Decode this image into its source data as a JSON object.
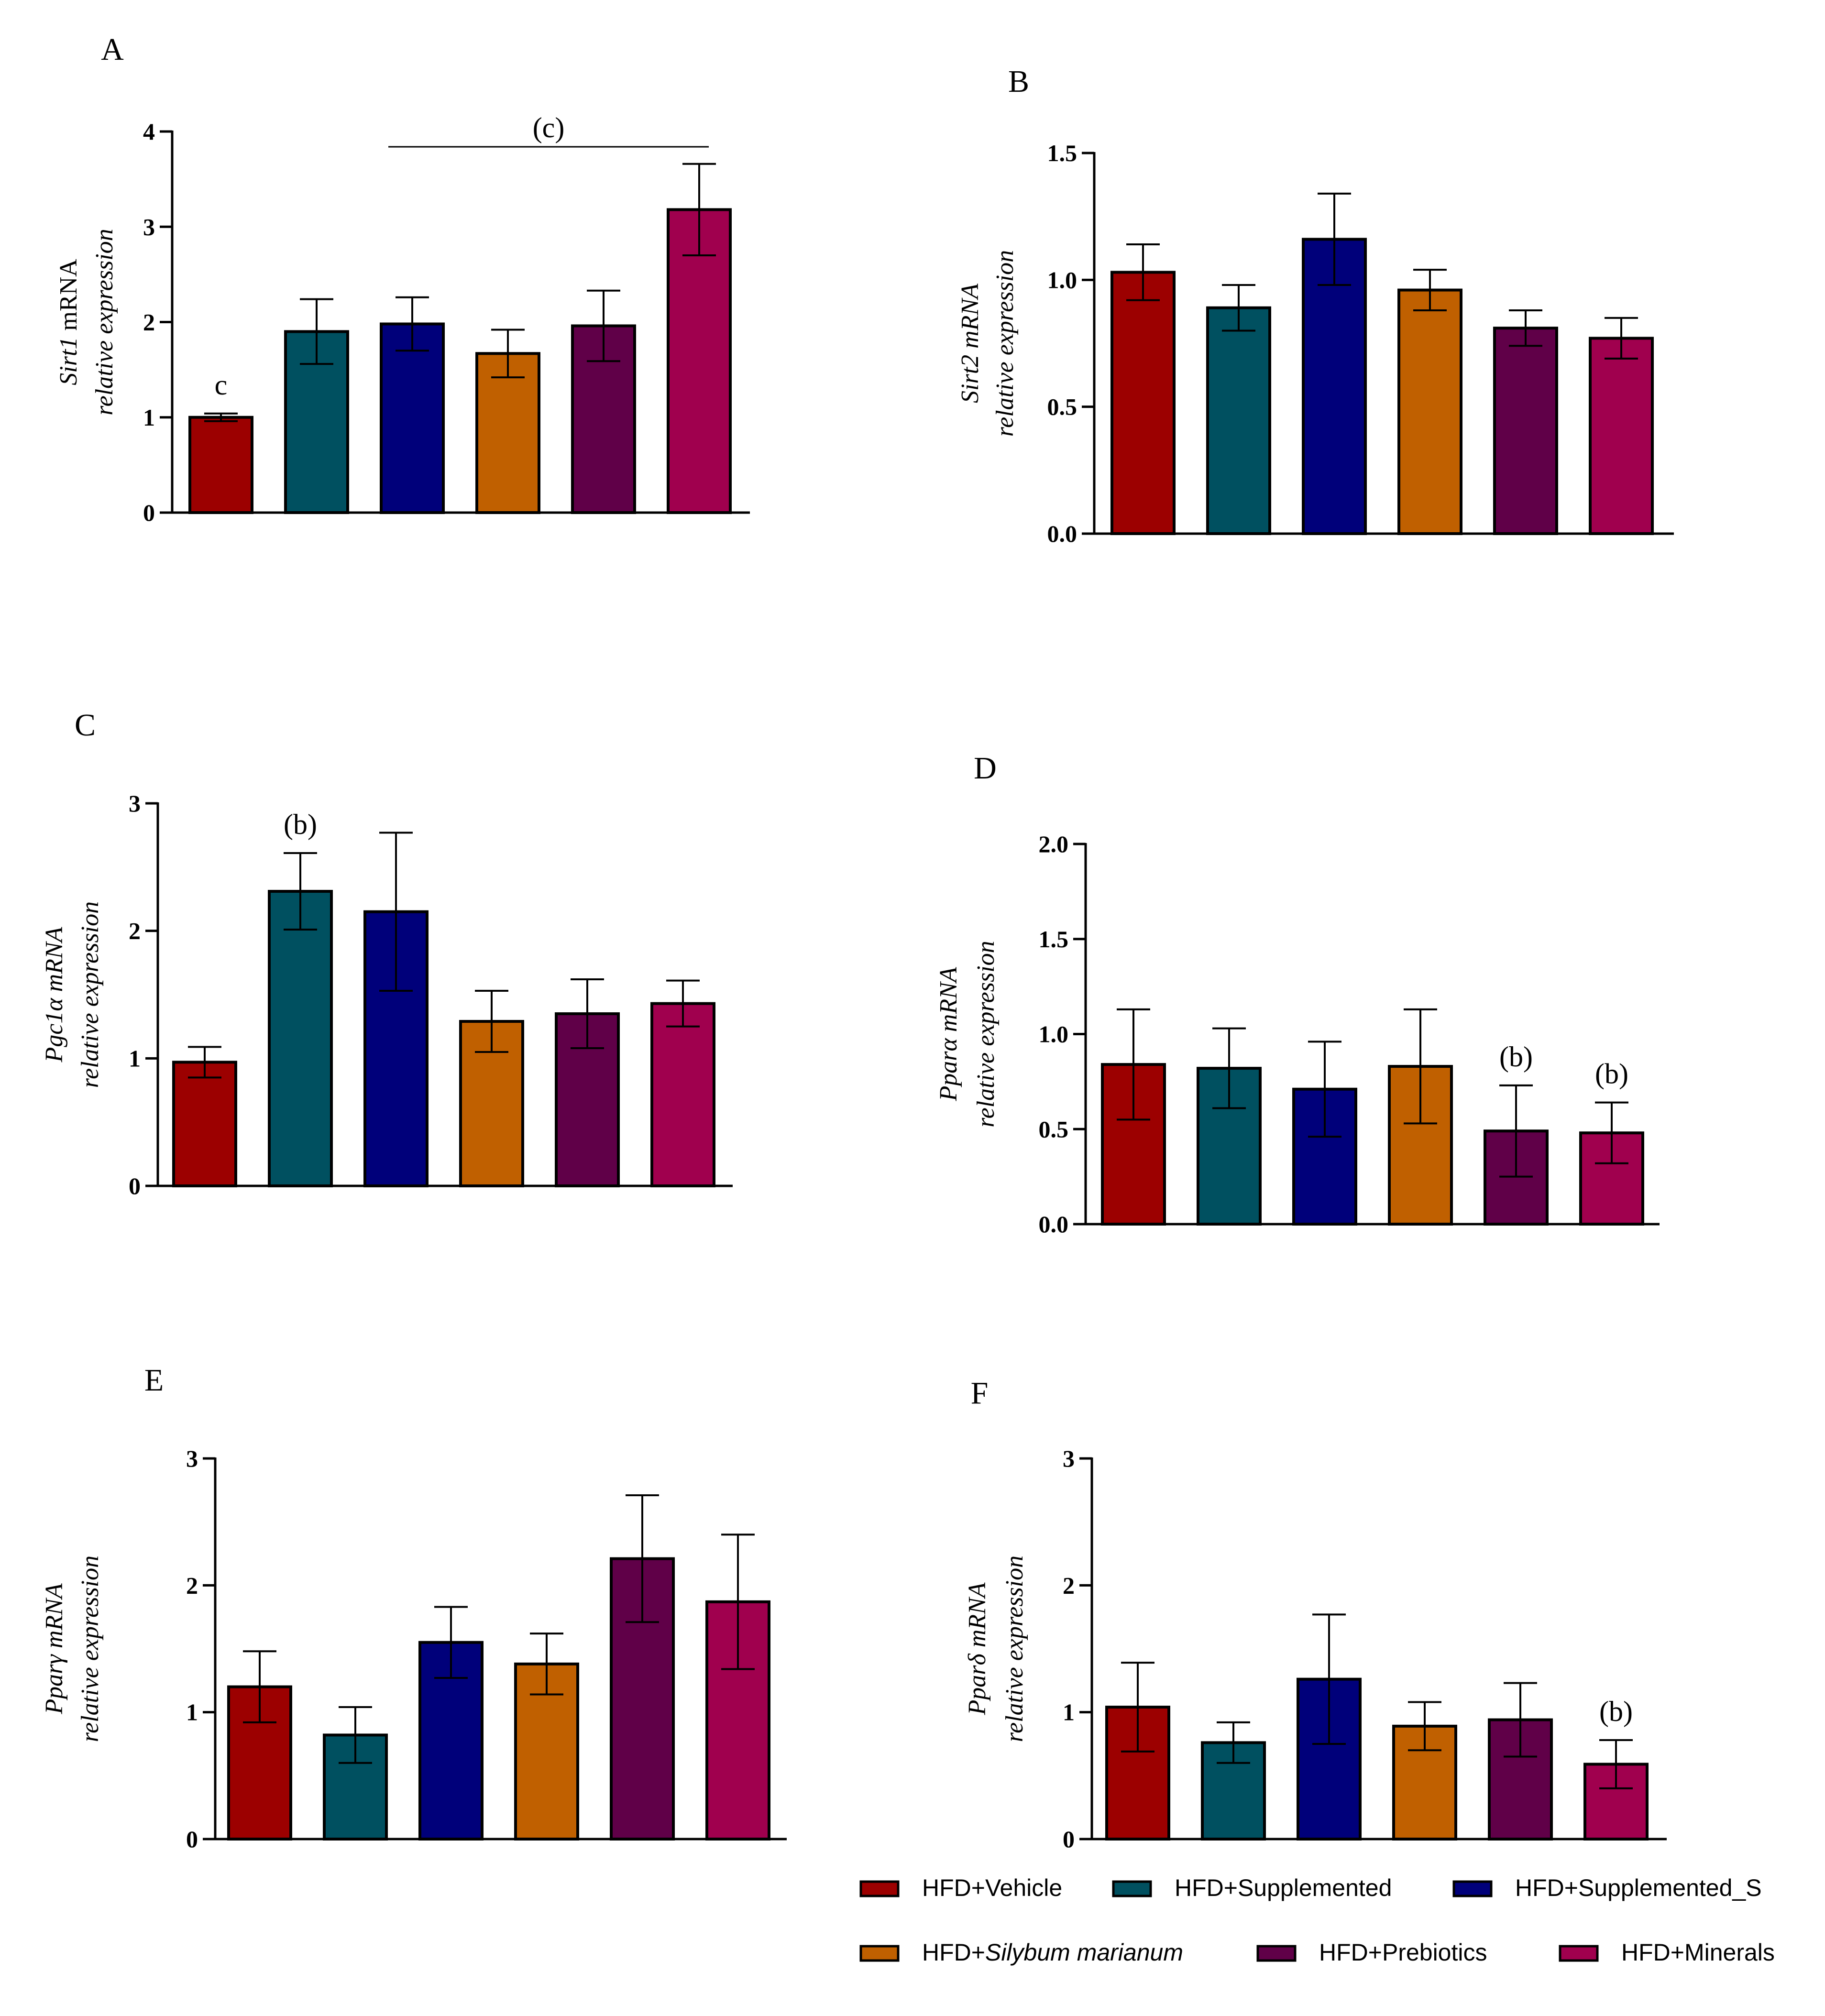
{
  "groups": [
    {
      "name": "HFD+Vehicle",
      "color": "#9c0000"
    },
    {
      "name": "HFD+Supplemented",
      "color": "#005060"
    },
    {
      "name": "HFD+Supplemented_S",
      "color": "#00007a"
    },
    {
      "name": "HFD+Silybum marianum",
      "prefix": "HFD+",
      "italic": "Silybum marianum",
      "color": "#c06000"
    },
    {
      "name": "HFD+Prebiotics",
      "color": "#600048"
    },
    {
      "name": "HFD+Minerals",
      "color": "#a0004e"
    }
  ],
  "chart_data": [
    {
      "panel": "A",
      "type": "bar",
      "ylabel_line1": {
        "gene": "Sirt1",
        "suffix": " mRNA",
        "gene_italic": true,
        "suffix_italic": false
      },
      "ylabel_line2": {
        "text": "relative expression",
        "italic": false
      },
      "ylim": [
        0,
        4
      ],
      "ticks": [
        0,
        1,
        2,
        3,
        4
      ],
      "tick_labels": [
        "0",
        "1",
        "2",
        "3",
        "4"
      ],
      "values": [
        1.0,
        1.9,
        1.98,
        1.67,
        1.96,
        3.18
      ],
      "errors": [
        0.04,
        0.34,
        0.28,
        0.25,
        0.37,
        0.48
      ],
      "annotations": [
        {
          "bar": 0,
          "text": "c"
        }
      ],
      "bracket": {
        "from": 2,
        "to": 5,
        "text": "(c)"
      }
    },
    {
      "panel": "B",
      "type": "bar",
      "ylabel_line1": {
        "gene": "Sirt2",
        "suffix": " mRNA",
        "gene_italic": true,
        "suffix_italic": true
      },
      "ylabel_line2": {
        "text": "relative expression",
        "italic": true
      },
      "ylim": [
        0,
        1.5
      ],
      "ticks": [
        0,
        0.5,
        1.0,
        1.5
      ],
      "tick_labels": [
        "0.0",
        "0.5",
        "1.0",
        "1.5"
      ],
      "values": [
        1.03,
        0.89,
        1.16,
        0.96,
        0.81,
        0.77
      ],
      "errors": [
        0.11,
        0.09,
        0.18,
        0.08,
        0.07,
        0.08
      ],
      "annotations": []
    },
    {
      "panel": "C",
      "type": "bar",
      "ylabel_line1": {
        "gene": "Pgc1α",
        "suffix": " mRNA",
        "gene_italic": true,
        "suffix_italic": true
      },
      "ylabel_line2": {
        "text": "relative expression",
        "italic": true
      },
      "ylim": [
        0,
        3
      ],
      "ticks": [
        0,
        1,
        2,
        3
      ],
      "tick_labels": [
        "0",
        "1",
        "2",
        "3"
      ],
      "values": [
        0.97,
        2.31,
        2.15,
        1.29,
        1.35,
        1.43
      ],
      "errors": [
        0.12,
        0.3,
        0.62,
        0.24,
        0.27,
        0.18
      ],
      "annotations": [
        {
          "bar": 1,
          "text": "(b)"
        }
      ]
    },
    {
      "panel": "D",
      "type": "bar",
      "ylabel_line1": {
        "gene": "Pparα",
        "suffix": " mRNA",
        "gene_italic": true,
        "suffix_italic": true
      },
      "ylabel_line2": {
        "text": "relative expression",
        "italic": true
      },
      "ylim": [
        0,
        2.0
      ],
      "ticks": [
        0,
        0.5,
        1.0,
        1.5,
        2.0
      ],
      "tick_labels": [
        "0.0",
        "0.5",
        "1.0",
        "1.5",
        "2.0"
      ],
      "values": [
        0.84,
        0.82,
        0.71,
        0.83,
        0.49,
        0.48
      ],
      "errors": [
        0.29,
        0.21,
        0.25,
        0.3,
        0.24,
        0.16
      ],
      "annotations": [
        {
          "bar": 4,
          "text": "(b)"
        },
        {
          "bar": 5,
          "text": "(b)"
        }
      ]
    },
    {
      "panel": "E",
      "type": "bar",
      "ylabel_line1": {
        "gene": "Pparγ",
        "suffix": " mRNA",
        "gene_italic": true,
        "suffix_italic": true
      },
      "ylabel_line2": {
        "text": "relative expression",
        "italic": true
      },
      "ylim": [
        0,
        3
      ],
      "ticks": [
        0,
        1,
        2,
        3
      ],
      "tick_labels": [
        "0",
        "1",
        "2",
        "3"
      ],
      "values": [
        1.2,
        0.82,
        1.55,
        1.38,
        2.21,
        1.87
      ],
      "errors": [
        0.28,
        0.22,
        0.28,
        0.24,
        0.5,
        0.53
      ],
      "annotations": []
    },
    {
      "panel": "F",
      "type": "bar",
      "ylabel_line1": {
        "gene": "Pparδ",
        "suffix": " mRNA",
        "gene_italic": true,
        "suffix_italic": true
      },
      "ylabel_line2": {
        "text": "relative expression",
        "italic": true
      },
      "ylim": [
        0,
        3
      ],
      "ticks": [
        0,
        1,
        2,
        3
      ],
      "tick_labels": [
        "0",
        "1",
        "2",
        "3"
      ],
      "values": [
        1.04,
        0.76,
        1.26,
        0.89,
        0.94,
        0.59
      ],
      "errors": [
        0.35,
        0.16,
        0.51,
        0.19,
        0.29,
        0.19
      ],
      "annotations": [
        {
          "bar": 5,
          "text": "(b)"
        }
      ]
    }
  ]
}
